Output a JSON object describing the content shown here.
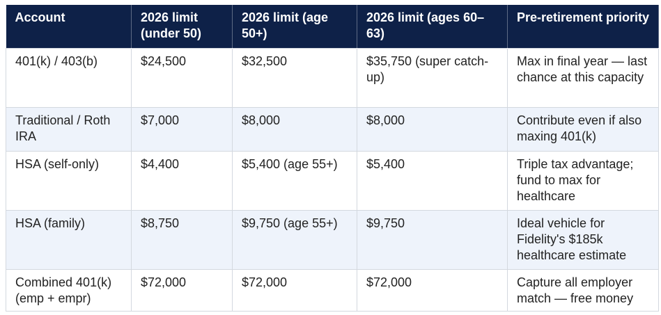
{
  "table": {
    "columns": [
      "Account",
      "2026 limit (under 50)",
      "2026 limit (age 50+)",
      "2026 limit (ages 60–63)",
      "Pre-retirement priority"
    ],
    "rows": [
      [
        "401(k) / 403(b)",
        "$24,500",
        "$32,500",
        "$35,750 (super catch-up)",
        "Max in final year — last chance at this capacity"
      ],
      [
        "Traditional / Roth IRA",
        "$7,000",
        "$8,000",
        "$8,000",
        "Contribute even if also maxing 401(k)"
      ],
      [
        "HSA (self-only)",
        "$4,400",
        "$5,400 (age 55+)",
        "$5,400",
        "Triple tax advantage; fund to max for healthcare"
      ],
      [
        "HSA (family)",
        "$8,750",
        "$9,750 (age 55+)",
        "$9,750",
        "Ideal vehicle for Fidelity's $185k healthcare estimate"
      ],
      [
        "Combined 401(k) (emp + empr)",
        "$72,000",
        "$72,000",
        "$72,000",
        "Capture all employer match — free money"
      ]
    ]
  }
}
